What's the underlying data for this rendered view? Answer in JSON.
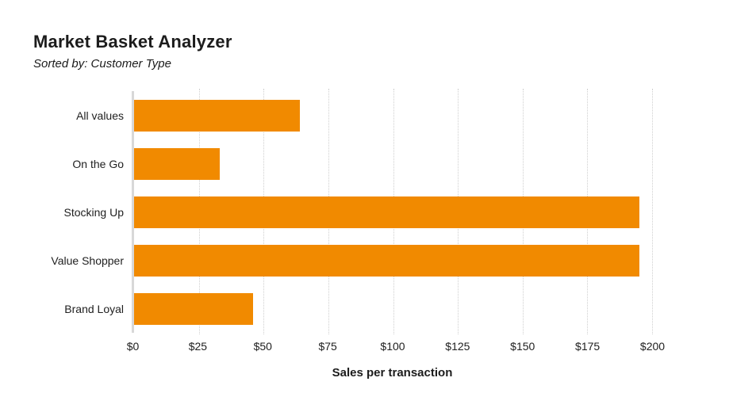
{
  "header": {
    "title": "Market Basket Analyzer",
    "subtitle": "Sorted by: Customer Type"
  },
  "chart_data": {
    "type": "bar",
    "orientation": "horizontal",
    "title": "Market Basket Analyzer",
    "subtitle": "Sorted by: Customer Type",
    "categories": [
      "All values",
      "On the Go",
      "Stocking Up",
      "Value Shopper",
      "Brand Loyal"
    ],
    "values": [
      64,
      33,
      195,
      195,
      46
    ],
    "xlabel": "Sales per transaction",
    "ylabel": "",
    "xlim": [
      0,
      200
    ],
    "x_ticks": [
      {
        "value": 0,
        "label": "$0"
      },
      {
        "value": 25,
        "label": "$25"
      },
      {
        "value": 50,
        "label": "$50"
      },
      {
        "value": 75,
        "label": "$75"
      },
      {
        "value": 100,
        "label": "$100"
      },
      {
        "value": 125,
        "label": "$125"
      },
      {
        "value": 150,
        "label": "$150"
      },
      {
        "value": 175,
        "label": "$175"
      },
      {
        "value": 200,
        "label": "$200"
      }
    ],
    "grid_values": [
      25,
      50,
      75,
      100,
      125,
      150,
      175,
      200
    ],
    "grid_style": "dotted-vertical",
    "legend": "none",
    "colors": {
      "bar": "#F18A00",
      "axis_line": "#D8D8D8",
      "gridline": "#CFCFCF",
      "text": "#1C1C1C",
      "background": "#FFFFFF"
    }
  }
}
